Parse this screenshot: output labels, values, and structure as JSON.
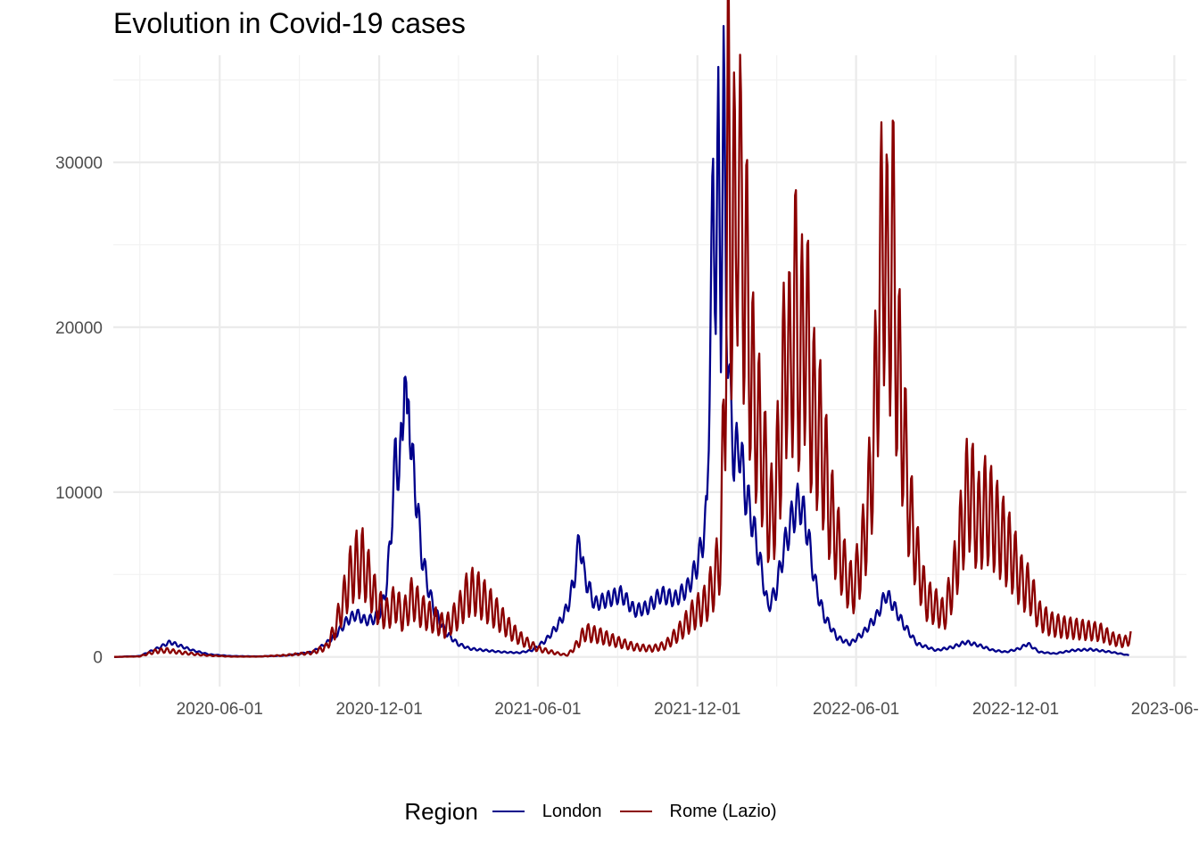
{
  "chart_data": {
    "type": "line",
    "title": "Evolution in Covid-19 cases",
    "xlabel": "",
    "ylabel": "",
    "x_range": [
      "2020-01-31",
      "2023-06-15"
    ],
    "ylim": [
      -1800,
      36500
    ],
    "y_ticks": [
      0,
      10000,
      20000,
      30000
    ],
    "x_ticks": [
      "2020-06-01",
      "2020-12-01",
      "2021-06-01",
      "2021-12-01",
      "2022-06-01",
      "2022-12-01",
      "2023-06-01"
    ],
    "x_tick_labels": [
      "2020-06-01",
      "2020-12-01",
      "2021-06-01",
      "2021-12-01",
      "2022-06-01",
      "2022-12-01",
      "2023-06-01"
    ],
    "grid": true,
    "legend": {
      "title": "Region",
      "placement": "bottom"
    },
    "series": [
      {
        "name": "London",
        "color": "#00008B",
        "points": [
          [
            "2020-02-01",
            0
          ],
          [
            "2020-03-01",
            50
          ],
          [
            "2020-03-25",
            600
          ],
          [
            "2020-04-05",
            900
          ],
          [
            "2020-04-15",
            700
          ],
          [
            "2020-05-01",
            400
          ],
          [
            "2020-05-20",
            150
          ],
          [
            "2020-06-15",
            50
          ],
          [
            "2020-07-15",
            30
          ],
          [
            "2020-08-15",
            80
          ],
          [
            "2020-09-15",
            300
          ],
          [
            "2020-10-01",
            800
          ],
          [
            "2020-10-15",
            1500
          ],
          [
            "2020-10-25",
            2200
          ],
          [
            "2020-11-05",
            2600
          ],
          [
            "2020-11-15",
            2200
          ],
          [
            "2020-11-25",
            2300
          ],
          [
            "2020-12-03",
            2800
          ],
          [
            "2020-12-10",
            4500
          ],
          [
            "2020-12-15",
            8000
          ],
          [
            "2020-12-20",
            12500
          ],
          [
            "2020-12-24",
            11000
          ],
          [
            "2020-12-28",
            14000
          ],
          [
            "2020-12-30",
            19000
          ],
          [
            "2021-01-02",
            13000
          ],
          [
            "2021-01-04",
            16500
          ],
          [
            "2021-01-07",
            12000
          ],
          [
            "2021-01-10",
            11000
          ],
          [
            "2021-01-14",
            9000
          ],
          [
            "2021-01-18",
            6500
          ],
          [
            "2021-01-25",
            4500
          ],
          [
            "2021-02-01",
            3000
          ],
          [
            "2021-02-15",
            1500
          ],
          [
            "2021-03-01",
            800
          ],
          [
            "2021-03-15",
            500
          ],
          [
            "2021-04-01",
            400
          ],
          [
            "2021-04-20",
            300
          ],
          [
            "2021-05-10",
            250
          ],
          [
            "2021-05-25",
            400
          ],
          [
            "2021-06-10",
            1000
          ],
          [
            "2021-06-25",
            2000
          ],
          [
            "2021-07-05",
            3000
          ],
          [
            "2021-07-12",
            4500
          ],
          [
            "2021-07-19",
            7300
          ],
          [
            "2021-07-24",
            5000
          ],
          [
            "2021-08-05",
            3200
          ],
          [
            "2021-08-20",
            3500
          ],
          [
            "2021-09-05",
            3800
          ],
          [
            "2021-09-20",
            2800
          ],
          [
            "2021-10-05",
            3000
          ],
          [
            "2021-10-20",
            3800
          ],
          [
            "2021-11-05",
            3500
          ],
          [
            "2021-11-20",
            4200
          ],
          [
            "2021-11-30",
            5500
          ],
          [
            "2021-12-07",
            7000
          ],
          [
            "2021-12-12",
            9000
          ],
          [
            "2021-12-16",
            20000
          ],
          [
            "2021-12-19",
            28500
          ],
          [
            "2021-12-22",
            22000
          ],
          [
            "2021-12-25",
            31500
          ],
          [
            "2021-12-28",
            20000
          ],
          [
            "2021-12-31",
            34500
          ],
          [
            "2022-01-03",
            22000
          ],
          [
            "2022-01-07",
            16000
          ],
          [
            "2022-01-12",
            12000
          ],
          [
            "2022-01-18",
            13000
          ],
          [
            "2022-01-25",
            10000
          ],
          [
            "2022-02-01",
            8500
          ],
          [
            "2022-02-10",
            6000
          ],
          [
            "2022-02-20",
            3000
          ],
          [
            "2022-03-01",
            4000
          ],
          [
            "2022-03-10",
            6500
          ],
          [
            "2022-03-20",
            8500
          ],
          [
            "2022-03-28",
            9500
          ],
          [
            "2022-04-05",
            8000
          ],
          [
            "2022-04-15",
            4500
          ],
          [
            "2022-04-25",
            2500
          ],
          [
            "2022-05-10",
            1200
          ],
          [
            "2022-05-25",
            800
          ],
          [
            "2022-06-10",
            1500
          ],
          [
            "2022-06-25",
            2500
          ],
          [
            "2022-07-05",
            3800
          ],
          [
            "2022-07-12",
            3300
          ],
          [
            "2022-07-25",
            2000
          ],
          [
            "2022-08-10",
            800
          ],
          [
            "2022-09-01",
            400
          ],
          [
            "2022-09-20",
            600
          ],
          [
            "2022-10-05",
            900
          ],
          [
            "2022-10-20",
            700
          ],
          [
            "2022-11-05",
            400
          ],
          [
            "2022-11-20",
            300
          ],
          [
            "2022-12-05",
            500
          ],
          [
            "2022-12-15",
            800
          ],
          [
            "2022-12-28",
            300
          ],
          [
            "2023-01-15",
            200
          ],
          [
            "2023-02-05",
            400
          ],
          [
            "2023-02-25",
            450
          ],
          [
            "2023-03-20",
            300
          ],
          [
            "2023-04-10",
            100
          ]
        ]
      },
      {
        "name": "Rome (Lazio)",
        "color": "#8B0000",
        "points": [
          [
            "2020-02-01",
            0
          ],
          [
            "2020-03-01",
            30
          ],
          [
            "2020-03-20",
            350
          ],
          [
            "2020-04-01",
            400
          ],
          [
            "2020-04-20",
            250
          ],
          [
            "2020-05-15",
            100
          ],
          [
            "2020-06-15",
            20
          ],
          [
            "2020-07-15",
            20
          ],
          [
            "2020-08-15",
            100
          ],
          [
            "2020-09-15",
            250
          ],
          [
            "2020-10-01",
            600
          ],
          [
            "2020-10-10",
            1500
          ],
          [
            "2020-10-20",
            3200
          ],
          [
            "2020-10-28",
            4800
          ],
          [
            "2020-11-05",
            5600
          ],
          [
            "2020-11-12",
            5700
          ],
          [
            "2020-11-20",
            4600
          ],
          [
            "2020-11-30",
            3000
          ],
          [
            "2020-12-10",
            2600
          ],
          [
            "2020-12-20",
            3300
          ],
          [
            "2020-12-28",
            2400
          ],
          [
            "2021-01-08",
            3600
          ],
          [
            "2021-01-18",
            2800
          ],
          [
            "2021-02-01",
            2300
          ],
          [
            "2021-02-15",
            1800
          ],
          [
            "2021-03-01",
            2600
          ],
          [
            "2021-03-12",
            3800
          ],
          [
            "2021-03-20",
            4000
          ],
          [
            "2021-04-01",
            3400
          ],
          [
            "2021-04-15",
            2600
          ],
          [
            "2021-05-01",
            1600
          ],
          [
            "2021-05-15",
            1000
          ],
          [
            "2021-06-01",
            500
          ],
          [
            "2021-06-20",
            250
          ],
          [
            "2021-07-05",
            100
          ],
          [
            "2021-07-15",
            700
          ],
          [
            "2021-07-25",
            1500
          ],
          [
            "2021-08-10",
            1300
          ],
          [
            "2021-09-01",
            900
          ],
          [
            "2021-09-20",
            600
          ],
          [
            "2021-10-10",
            500
          ],
          [
            "2021-10-25",
            700
          ],
          [
            "2021-11-10",
            1500
          ],
          [
            "2021-11-25",
            2500
          ],
          [
            "2021-12-10",
            3200
          ],
          [
            "2021-12-20",
            4500
          ],
          [
            "2021-12-28",
            6500
          ],
          [
            "2022-01-02",
            18000
          ],
          [
            "2022-01-05",
            33000
          ],
          [
            "2022-01-08",
            22000
          ],
          [
            "2022-01-11",
            30500
          ],
          [
            "2022-01-14",
            21000
          ],
          [
            "2022-01-17",
            34500
          ],
          [
            "2022-01-20",
            25000
          ],
          [
            "2022-01-25",
            24000
          ],
          [
            "2022-02-01",
            17000
          ],
          [
            "2022-02-08",
            14000
          ],
          [
            "2022-02-15",
            12000
          ],
          [
            "2022-02-22",
            8000
          ],
          [
            "2022-03-01",
            10000
          ],
          [
            "2022-03-07",
            14000
          ],
          [
            "2022-03-14",
            20000
          ],
          [
            "2022-03-18",
            16000
          ],
          [
            "2022-03-22",
            22500
          ],
          [
            "2022-03-28",
            17000
          ],
          [
            "2022-04-04",
            21000
          ],
          [
            "2022-04-11",
            15000
          ],
          [
            "2022-04-18",
            14000
          ],
          [
            "2022-04-25",
            12000
          ],
          [
            "2022-05-02",
            9000
          ],
          [
            "2022-05-10",
            7000
          ],
          [
            "2022-05-20",
            5000
          ],
          [
            "2022-05-28",
            4000
          ],
          [
            "2022-06-07",
            6000
          ],
          [
            "2022-06-15",
            9000
          ],
          [
            "2022-06-22",
            14000
          ],
          [
            "2022-06-28",
            22000
          ],
          [
            "2022-07-04",
            27000
          ],
          [
            "2022-07-08",
            20000
          ],
          [
            "2022-07-12",
            26500
          ],
          [
            "2022-07-18",
            18000
          ],
          [
            "2022-07-25",
            14000
          ],
          [
            "2022-08-01",
            9000
          ],
          [
            "2022-08-10",
            6000
          ],
          [
            "2022-08-20",
            3500
          ],
          [
            "2022-09-01",
            3000
          ],
          [
            "2022-09-10",
            2500
          ],
          [
            "2022-09-20",
            4500
          ],
          [
            "2022-09-28",
            7000
          ],
          [
            "2022-10-05",
            9500
          ],
          [
            "2022-10-10",
            10300
          ],
          [
            "2022-10-18",
            8000
          ],
          [
            "2022-10-28",
            9000
          ],
          [
            "2022-11-08",
            8000
          ],
          [
            "2022-11-18",
            7000
          ],
          [
            "2022-11-28",
            6000
          ],
          [
            "2022-12-08",
            4500
          ],
          [
            "2022-12-18",
            4000
          ],
          [
            "2022-12-28",
            2500
          ],
          [
            "2023-01-10",
            2000
          ],
          [
            "2023-01-25",
            1800
          ],
          [
            "2023-02-08",
            1700
          ],
          [
            "2023-02-22",
            1600
          ],
          [
            "2023-03-08",
            1500
          ],
          [
            "2023-03-22",
            1100
          ],
          [
            "2023-04-05",
            900
          ],
          [
            "2023-04-12",
            1200
          ]
        ]
      }
    ]
  }
}
